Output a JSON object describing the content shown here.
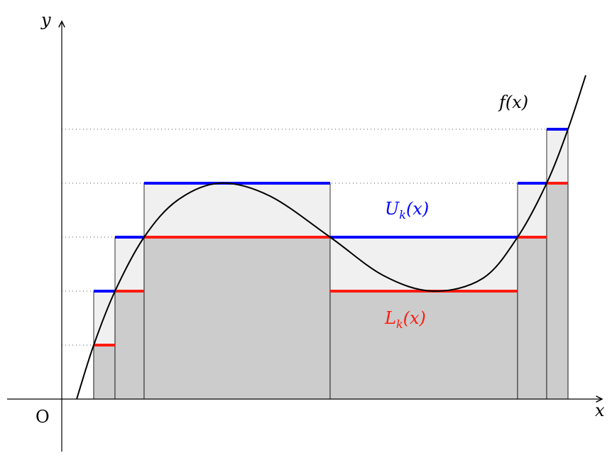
{
  "axes": {
    "x_label": "x",
    "y_label": "y",
    "origin_label": "O"
  },
  "function_label": "f(x)",
  "upper_label": "U",
  "upper_sub": "k",
  "upper_arg": "(x)",
  "lower_label": "L",
  "lower_sub": "k",
  "lower_arg": "(x)",
  "colors": {
    "upper": "#0000ff",
    "lower": "#ff1a0f",
    "lower_fill": "#cccccc",
    "upper_fill": "#f0f0f0",
    "curve": "#000000"
  }
}
